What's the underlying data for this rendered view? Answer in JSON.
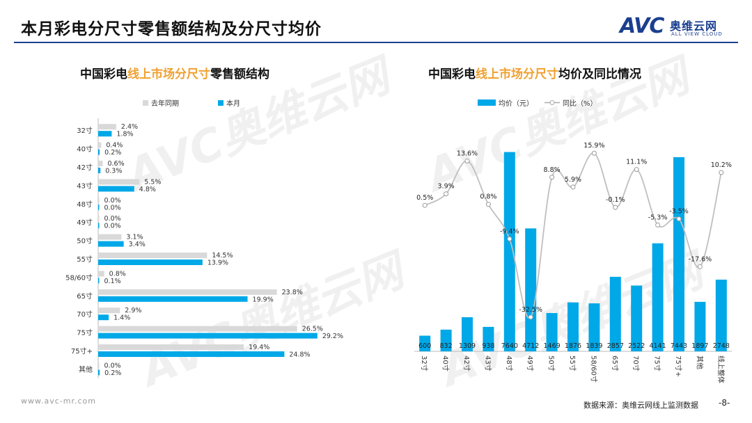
{
  "header": {
    "title": "本月彩电分尺寸零售额结构及分尺寸均价"
  },
  "logo": {
    "mark": "AVC",
    "cn": "奥维云网",
    "en": "ALL VIEW CLOUD"
  },
  "footer": {
    "url": "www.avc-mr.com",
    "source": "数据来源：奥维云网线上监测数据",
    "page": "-8-"
  },
  "chart_data": [
    {
      "type": "bar",
      "orientation": "horizontal",
      "title_pre": "中国彩电",
      "title_hl": "线上市场分尺寸",
      "title_post": "零售额结构",
      "categories": [
        "32寸",
        "40寸",
        "42寸",
        "43寸",
        "48寸",
        "49寸",
        "50寸",
        "55寸",
        "58/60寸",
        "65寸",
        "70寸",
        "75寸",
        "75寸+",
        "其他"
      ],
      "series": [
        {
          "name": "去年同期",
          "color": "#d9d9d9",
          "values": [
            2.4,
            0.4,
            0.6,
            5.5,
            0.0,
            0.0,
            3.1,
            14.5,
            0.8,
            23.8,
            2.9,
            26.5,
            19.4,
            0.0
          ]
        },
        {
          "name": "本月",
          "color": "#00a8e8",
          "values": [
            1.8,
            0.2,
            0.3,
            4.8,
            0.0,
            0.0,
            3.4,
            13.9,
            0.1,
            19.9,
            1.4,
            29.2,
            24.8,
            0.2
          ]
        }
      ],
      "labels_prev": [
        "2.4%",
        "0.4%",
        "0.6%",
        "5.5%",
        "0.0%",
        "0.0%",
        "3.1%",
        "14.5%",
        "0.8%",
        "23.8%",
        "2.9%",
        "26.5%",
        "19.4%",
        "0.0%"
      ],
      "labels_cur": [
        "1.8%",
        "0.2%",
        "0.3%",
        "4.8%",
        "0.0%",
        "0.0%",
        "3.4%",
        "13.9%",
        "0.1%",
        "19.9%",
        "1.4%",
        "29.2%",
        "24.8%",
        "0.2%"
      ],
      "xlim": [
        0,
        32
      ]
    },
    {
      "type": "bar+line",
      "title_pre": "中国彩电",
      "title_hl": "线上市场分尺寸",
      "title_post": "均价及同比情况",
      "categories": [
        "32寸",
        "40寸",
        "42寸",
        "43寸",
        "48寸",
        "49寸",
        "50寸",
        "55寸",
        "58/60寸",
        "65寸",
        "70寸",
        "75寸",
        "75寸+",
        "其他",
        "线上整体"
      ],
      "bar_series": {
        "name": "均价（元）",
        "color": "#00a8e8",
        "values": [
          600,
          832,
          1309,
          938,
          7640,
          4712,
          1469,
          1876,
          1839,
          2857,
          2522,
          4141,
          7443,
          1897,
          2748
        ],
        "labels": [
          "600",
          "832",
          "1309",
          "938",
          "7640",
          "4712",
          "1469",
          "1876",
          "1839",
          "2857",
          "2522",
          "4141",
          "7443",
          "1897",
          "2748"
        ]
      },
      "line_series": {
        "name": "同比（%）",
        "color": "#bfbfbf",
        "values": [
          0.5,
          3.9,
          13.6,
          0.8,
          -9.4,
          -32.5,
          8.8,
          5.9,
          15.9,
          -0.1,
          11.1,
          -5.3,
          -3.5,
          -17.6,
          10.2
        ],
        "labels": [
          "0.5%",
          "3.9%",
          "13.6%",
          "0.8%",
          "-9.4%",
          "-32.5%",
          "8.8%",
          "5.9%",
          "15.9%",
          "-0.1%",
          "11.1%",
          "-5.3%",
          "-3.5%",
          "-17.6%",
          "10.2%"
        ]
      },
      "ylim_bar": [
        0,
        8000
      ],
      "ylim_line": [
        -35,
        18
      ]
    }
  ]
}
